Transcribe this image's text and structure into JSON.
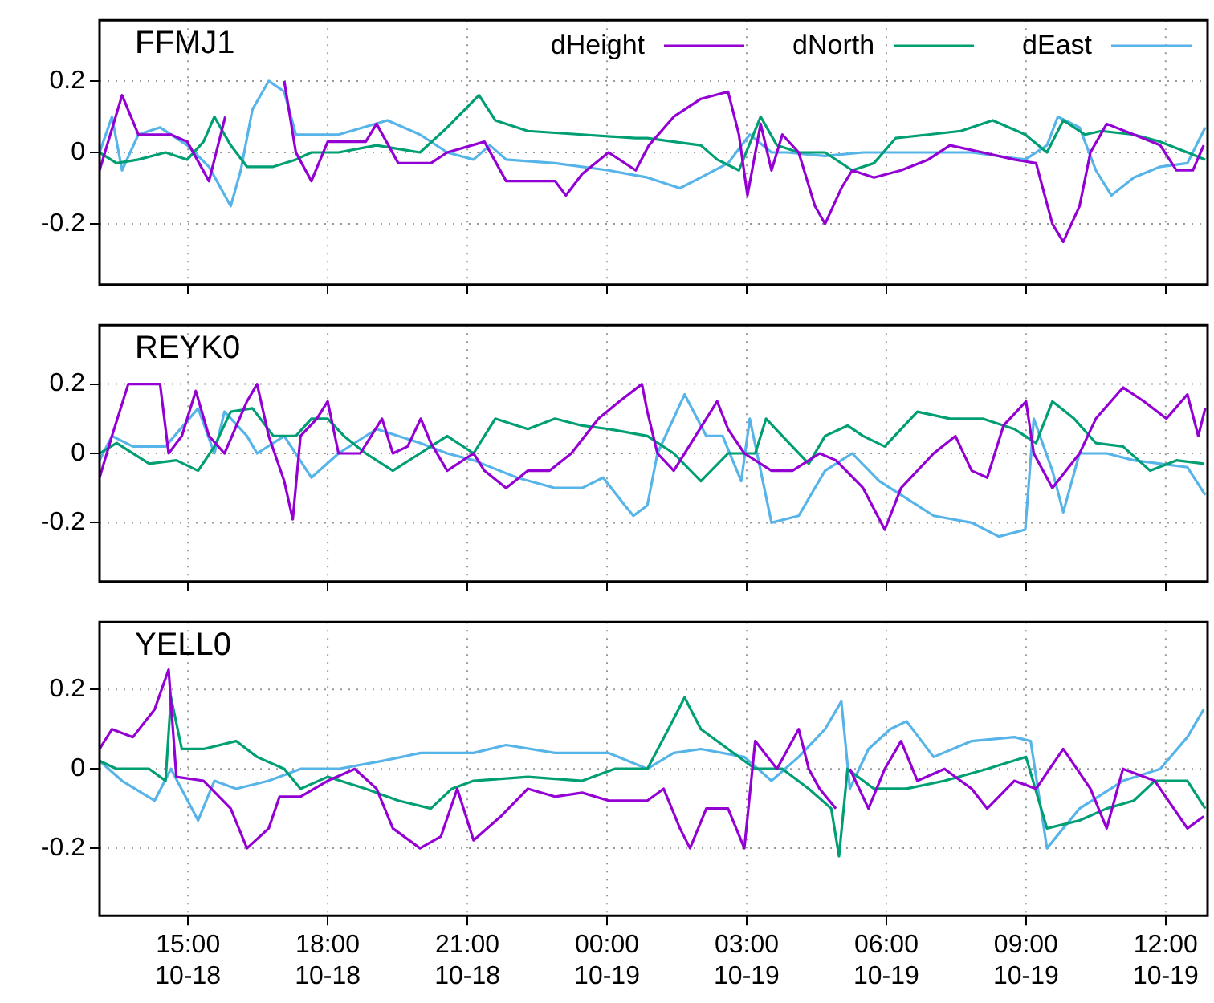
{
  "chart_data": [
    {
      "type": "line",
      "title": "FFMJ1",
      "legend": "top right",
      "grid": true,
      "tick_labels": "y",
      "marker": "none",
      "xlim": [
        "--10-18T13:06",
        "--10-19T12:54"
      ],
      "ylim": [
        -0.37,
        0.37
      ],
      "yticks": [
        -0.2,
        0,
        0.2
      ],
      "xticks": [
        {
          "value": "--10-18T15:00",
          "label": null
        },
        {
          "value": "--10-18T18:00",
          "label": null
        },
        {
          "value": "--10-18T21:00",
          "label": null
        },
        {
          "value": "--10-19T00:00",
          "label": null
        },
        {
          "value": "--10-19T03:00",
          "label": null
        },
        {
          "value": "--10-19T06:00",
          "label": null
        },
        {
          "value": "--10-19T09:00",
          "label": null
        },
        {
          "value": "--10-19T12:00",
          "label": null
        }
      ],
      "series": [
        {
          "name": "dHeight",
          "color": "#9400d3",
          "x": [
            "--10-18T13:06",
            "--10-18T13:35",
            "--10-18T13:56",
            "--10-18T14:10",
            "--10-18T14:38",
            "--10-18T14:59",
            "--10-18T15:27",
            "--10-18T15:48",
            "--10-18T16:02",
            "--10-18T16:58",
            "--10-18T17:04",
            "--10-18T17:19",
            "--10-18T17:39",
            "--10-18T18:00",
            "--10-18T18:49",
            "--10-18T19:03",
            "--10-18T19:31",
            "--10-18T20:13",
            "--10-18T20:34",
            "--10-18T21:22",
            "--10-18T21:50",
            "--10-18T22:53",
            "--10-18T23:07",
            "--10-18T23:28",
            "--10-19T00:02",
            "--10-19T00:37",
            "--10-19T00:54",
            "--10-19T01:26",
            "--10-19T02:01",
            "--10-19T02:36",
            "--10-19T02:50",
            "--10-19T03:01",
            "--10-19T03:18",
            "--10-19T03:32",
            "--10-19T03:46",
            "--10-19T04:07",
            "--10-19T04:28",
            "--10-19T04:41",
            "--10-19T05:02",
            "--10-19T05:16",
            "--10-19T05:44",
            "--10-19T06:19",
            "--10-19T06:54",
            "--10-19T07:22",
            "--10-19T08:04",
            "--10-19T08:45",
            "--10-19T09:13",
            "--10-19T09:34",
            "--10-19T09:48",
            "--10-19T10:09",
            "--10-19T10:23",
            "--10-19T10:44",
            "--10-19T11:19",
            "--10-19T11:53",
            "--10-19T12:14",
            "--10-19T12:35",
            "--10-19T12:49"
          ],
          "values": [
            -0.05,
            0.16,
            0.05,
            0.05,
            0.05,
            0.03,
            -0.08,
            0.1,
            null,
            null,
            0.2,
            0.0,
            -0.08,
            0.03,
            0.03,
            0.08,
            -0.03,
            -0.03,
            0.0,
            0.03,
            -0.08,
            -0.08,
            -0.12,
            -0.06,
            0.0,
            -0.05,
            0.02,
            0.1,
            0.15,
            0.17,
            0.05,
            -0.12,
            0.08,
            -0.05,
            0.05,
            0.0,
            -0.15,
            -0.2,
            -0.1,
            -0.05,
            -0.07,
            -0.05,
            -0.02,
            0.02,
            0.0,
            -0.02,
            -0.03,
            -0.2,
            -0.25,
            -0.15,
            0.0,
            0.08,
            0.05,
            0.02,
            -0.05,
            -0.05,
            0.02
          ]
        },
        {
          "name": "dNorth",
          "color": "#009e73",
          "x": [
            "--10-18T13:06",
            "--10-18T13:28",
            "--10-18T13:56",
            "--10-18T14:31",
            "--10-18T14:59",
            "--10-18T15:20",
            "--10-18T15:34",
            "--10-18T15:55",
            "--10-18T16:16",
            "--10-18T16:50",
            "--10-18T17:19",
            "--10-18T17:39",
            "--10-18T18:14",
            "--10-18T19:03",
            "--10-18T19:59",
            "--10-18T20:34",
            "--10-18T21:15",
            "--10-18T21:36",
            "--10-18T22:18",
            "--10-18T23:28",
            "--10-19T00:37",
            "--10-19T00:52",
            "--10-19T01:26",
            "--10-19T02:01",
            "--10-19T02:22",
            "--10-19T02:50",
            "--10-19T03:18",
            "--10-19T03:39",
            "--10-19T04:07",
            "--10-19T04:41",
            "--10-19T05:16",
            "--10-19T05:44",
            "--10-19T06:12",
            "--10-19T06:54",
            "--10-19T07:36",
            "--10-19T08:17",
            "--10-19T08:59",
            "--10-19T09:27",
            "--10-19T09:48",
            "--10-19T10:16",
            "--10-19T10:37",
            "--10-19T11:19",
            "--10-19T11:53",
            "--10-19T12:28",
            "--10-19T12:51"
          ],
          "values": [
            0.0,
            -0.03,
            -0.02,
            0.0,
            -0.02,
            0.03,
            0.1,
            0.02,
            -0.04,
            -0.04,
            -0.02,
            0.0,
            0.0,
            0.02,
            0.0,
            0.07,
            0.16,
            0.09,
            0.06,
            0.05,
            0.04,
            0.04,
            0.03,
            0.02,
            -0.02,
            -0.05,
            0.1,
            0.02,
            0.0,
            0.0,
            -0.05,
            -0.03,
            0.04,
            0.05,
            0.06,
            0.09,
            0.05,
            0.0,
            0.09,
            0.05,
            0.06,
            0.05,
            0.03,
            0.0,
            -0.02
          ]
        },
        {
          "name": "dEast",
          "color": "#56b4e9",
          "x": [
            "--10-18T13:06",
            "--10-18T13:22",
            "--10-18T13:35",
            "--10-18T13:56",
            "--10-18T14:24",
            "--10-18T14:59",
            "--10-18T15:27",
            "--10-18T15:55",
            "--10-18T16:08",
            "--10-18T16:23",
            "--10-18T16:44",
            "--10-18T17:04",
            "--10-18T17:19",
            "--10-18T17:39",
            "--10-18T18:14",
            "--10-18T19:17",
            "--10-18T19:59",
            "--10-18T20:34",
            "--10-18T21:08",
            "--10-18T21:29",
            "--10-18T21:50",
            "--10-18T22:53",
            "--10-19T00:02",
            "--10-19T00:52",
            "--10-19T01:34",
            "--10-19T02:01",
            "--10-19T02:36",
            "--10-19T03:04",
            "--10-19T03:32",
            "--10-19T03:53",
            "--10-19T04:41",
            "--10-19T05:30",
            "--10-19T05:58",
            "--10-19T06:40",
            "--10-19T07:50",
            "--10-19T08:59",
            "--10-19T09:27",
            "--10-19T09:41",
            "--10-19T10:09",
            "--10-19T10:30",
            "--10-19T10:50",
            "--10-19T11:19",
            "--10-19T11:53",
            "--10-19T12:28",
            "--10-19T12:51"
          ],
          "values": [
            0.0,
            0.1,
            -0.05,
            0.05,
            0.07,
            0.02,
            -0.04,
            -0.15,
            -0.05,
            0.12,
            0.2,
            0.17,
            0.05,
            0.05,
            0.05,
            0.09,
            0.05,
            0.0,
            -0.02,
            0.02,
            -0.02,
            -0.03,
            -0.05,
            -0.07,
            -0.1,
            -0.07,
            -0.03,
            0.05,
            0.0,
            0.0,
            -0.01,
            0.0,
            0.0,
            0.0,
            0.0,
            -0.02,
            0.02,
            0.1,
            0.07,
            -0.05,
            -0.12,
            -0.07,
            -0.04,
            -0.03,
            0.07
          ]
        }
      ]
    },
    {
      "type": "line",
      "title": "REYK0",
      "legend": false,
      "grid": true,
      "tick_labels": "y",
      "marker": "none",
      "xlim": [
        "--10-18T13:06",
        "--10-19T12:54"
      ],
      "ylim": [
        -0.37,
        0.37
      ],
      "yticks": [
        -0.2,
        0,
        0.2
      ],
      "xticks": [
        {
          "value": "--10-18T15:00",
          "label": null
        },
        {
          "value": "--10-18T18:00",
          "label": null
        },
        {
          "value": "--10-18T21:00",
          "label": null
        },
        {
          "value": "--10-19T00:00",
          "label": null
        },
        {
          "value": "--10-19T03:00",
          "label": null
        },
        {
          "value": "--10-19T06:00",
          "label": null
        },
        {
          "value": "--10-19T09:00",
          "label": null
        },
        {
          "value": "--10-19T12:00",
          "label": null
        }
      ],
      "series": [
        {
          "color": "#9400d3",
          "x": [
            "--10-18T13:06",
            "--10-18T13:22",
            "--10-18T13:43",
            "--10-18T14:24",
            "--10-18T14:35",
            "--10-18T14:52",
            "--10-18T15:10",
            "--10-18T15:27",
            "--10-18T15:47",
            "--10-18T16:16",
            "--10-18T16:29",
            "--10-18T16:44",
            "--10-18T17:04",
            "--10-18T17:15",
            "--10-18T17:25",
            "--10-18T17:46",
            "--10-18T18:00",
            "--10-18T18:14",
            "--10-18T18:42",
            "--10-18T19:10",
            "--10-18T19:24",
            "--10-18T19:43",
            "--10-18T20:00",
            "--10-18T20:13",
            "--10-18T20:34",
            "--10-18T21:08",
            "--10-18T21:22",
            "--10-18T21:50",
            "--10-18T22:18",
            "--10-18T22:46",
            "--10-18T23:14",
            "--10-18T23:49",
            "--10-19T00:16",
            "--10-19T00:45",
            "--10-19T00:52",
            "--10-19T01:05",
            "--10-19T01:26",
            "--10-19T01:54",
            "--10-19T02:22",
            "--10-19T02:36",
            "--10-19T02:57",
            "--10-19T03:32",
            "--10-19T03:59",
            "--10-19T04:34",
            "--10-19T04:55",
            "--10-19T05:30",
            "--10-19T05:58",
            "--10-19T06:19",
            "--10-19T07:01",
            "--10-19T07:29",
            "--10-19T07:50",
            "--10-19T08:10",
            "--10-19T08:31",
            "--10-19T09:00",
            "--10-19T09:10",
            "--10-19T09:34",
            "--10-19T10:09",
            "--10-19T10:30",
            "--10-19T11:05",
            "--10-19T11:32",
            "--10-19T12:01",
            "--10-19T12:28",
            "--10-19T12:42",
            "--10-19T12:51"
          ],
          "values": [
            -0.07,
            0.05,
            0.2,
            0.2,
            0.0,
            0.05,
            0.18,
            0.05,
            0.0,
            0.15,
            0.2,
            0.05,
            -0.08,
            -0.19,
            0.05,
            0.1,
            0.15,
            0.0,
            0.0,
            0.1,
            0.0,
            0.02,
            0.1,
            0.03,
            -0.05,
            0.0,
            -0.05,
            -0.1,
            -0.05,
            -0.05,
            0.0,
            0.1,
            0.15,
            0.2,
            0.12,
            0.0,
            -0.05,
            0.05,
            0.15,
            0.07,
            0.0,
            -0.05,
            -0.05,
            0.0,
            -0.02,
            -0.1,
            -0.22,
            -0.1,
            0.0,
            0.05,
            -0.05,
            -0.07,
            0.08,
            0.15,
            0.0,
            -0.1,
            0.0,
            0.1,
            0.19,
            0.15,
            0.1,
            0.17,
            0.05,
            0.13
          ]
        },
        {
          "color": "#009e73",
          "x": [
            "--10-18T13:06",
            "--10-18T13:28",
            "--10-18T14:10",
            "--10-18T14:45",
            "--10-18T15:13",
            "--10-18T15:34",
            "--10-18T15:55",
            "--10-18T16:23",
            "--10-18T16:50",
            "--10-18T17:19",
            "--10-18T17:39",
            "--10-18T18:00",
            "--10-18T18:21",
            "--10-18T18:49",
            "--10-18T19:24",
            "--10-18T19:59",
            "--10-18T20:34",
            "--10-18T21:08",
            "--10-18T21:36",
            "--10-18T22:18",
            "--10-18T22:53",
            "--10-18T23:28",
            "--10-19T00:02",
            "--10-19T00:52",
            "--10-19T01:26",
            "--10-19T02:01",
            "--10-19T02:36",
            "--10-19T03:11",
            "--10-19T03:25",
            "--10-19T03:46",
            "--10-19T04:20",
            "--10-19T04:41",
            "--10-19T05:10",
            "--10-19T05:30",
            "--10-19T05:58",
            "--10-19T06:40",
            "--10-19T07:22",
            "--10-19T08:04",
            "--10-19T08:45",
            "--10-19T09:13",
            "--10-19T09:34",
            "--10-19T10:02",
            "--10-19T10:30",
            "--10-19T11:05",
            "--10-19T11:40",
            "--10-19T12:14",
            "--10-19T12:49"
          ],
          "values": [
            0.0,
            0.03,
            -0.03,
            -0.02,
            -0.05,
            0.02,
            0.12,
            0.13,
            0.05,
            0.05,
            0.1,
            0.1,
            0.05,
            0.0,
            -0.05,
            0.0,
            0.05,
            0.0,
            0.1,
            0.07,
            0.1,
            0.08,
            0.07,
            0.05,
            0.0,
            -0.08,
            0.0,
            0.0,
            0.1,
            0.05,
            -0.03,
            0.05,
            0.08,
            0.05,
            0.02,
            0.12,
            0.1,
            0.1,
            0.07,
            0.03,
            0.15,
            0.1,
            0.03,
            0.02,
            -0.05,
            -0.02,
            -0.03
          ]
        },
        {
          "color": "#56b4e9",
          "x": [
            "--10-18T13:06",
            "--10-18T13:22",
            "--10-18T13:49",
            "--10-18T14:31",
            "--10-18T15:13",
            "--10-18T15:34",
            "--10-18T15:47",
            "--10-18T16:16",
            "--10-18T16:29",
            "--10-18T17:04",
            "--10-18T17:39",
            "--10-18T18:14",
            "--10-18T19:03",
            "--10-18T19:59",
            "--10-18T20:34",
            "--10-18T21:08",
            "--10-18T22:04",
            "--10-18T22:53",
            "--10-18T23:28",
            "--10-18T23:55",
            "--10-19T00:23",
            "--10-19T00:34",
            "--10-19T00:52",
            "--10-19T01:05",
            "--10-19T01:40",
            "--10-19T02:08",
            "--10-19T02:29",
            "--10-19T02:53",
            "--10-19T03:04",
            "--10-19T03:32",
            "--10-19T04:07",
            "--10-19T04:41",
            "--10-19T05:16",
            "--10-19T05:51",
            "--10-19T06:26",
            "--10-19T07:01",
            "--10-19T07:50",
            "--10-19T08:25",
            "--10-19T08:59",
            "--10-19T09:10",
            "--10-19T09:34",
            "--10-19T09:48",
            "--10-19T10:09",
            "--10-19T10:44",
            "--10-19T11:19",
            "--10-19T11:53",
            "--10-19T12:28",
            "--10-19T12:51"
          ],
          "values": [
            -0.02,
            0.05,
            0.02,
            0.02,
            0.13,
            0.0,
            0.12,
            0.05,
            0.0,
            0.05,
            -0.07,
            0.0,
            0.07,
            0.03,
            0.0,
            -0.02,
            -0.07,
            -0.1,
            -0.1,
            -0.07,
            -0.15,
            -0.18,
            -0.15,
            0.0,
            0.17,
            0.05,
            0.05,
            -0.08,
            0.1,
            -0.2,
            -0.18,
            -0.05,
            0.0,
            -0.08,
            -0.13,
            -0.18,
            -0.2,
            -0.24,
            -0.22,
            0.1,
            -0.05,
            -0.17,
            0.0,
            0.0,
            -0.02,
            -0.03,
            -0.04,
            -0.12
          ]
        }
      ]
    },
    {
      "type": "line",
      "title": "YELL0",
      "legend": false,
      "grid": true,
      "marker": "none",
      "xlim": [
        "--10-18T13:06",
        "--10-19T12:54"
      ],
      "ylim": [
        -0.37,
        0.37
      ],
      "yticks": [
        -0.2,
        0,
        0.2
      ],
      "xticks": [
        {
          "value": "--10-18T15:00",
          "label": "15:00\n10-18"
        },
        {
          "value": "--10-18T18:00",
          "label": "18:00\n10-18"
        },
        {
          "value": "--10-18T21:00",
          "label": "21:00\n10-18"
        },
        {
          "value": "--10-19T00:00",
          "label": "00:00\n10-19"
        },
        {
          "value": "--10-19T03:00",
          "label": "03:00\n10-19"
        },
        {
          "value": "--10-19T06:00",
          "label": "06:00\n10-19"
        },
        {
          "value": "--10-19T09:00",
          "label": "09:00\n10-19"
        },
        {
          "value": "--10-19T12:00",
          "label": "12:00\n10-19"
        }
      ],
      "series": [
        {
          "color": "#9400d3",
          "x": [
            "--10-18T13:06",
            "--10-18T13:22",
            "--10-18T13:49",
            "--10-18T14:17",
            "--10-18T14:35",
            "--10-18T14:45",
            "--10-18T15:20",
            "--10-18T15:55",
            "--10-18T16:16",
            "--10-18T16:44",
            "--10-18T16:58",
            "--10-18T17:25",
            "--10-18T18:00",
            "--10-18T18:35",
            "--10-18T19:03",
            "--10-18T19:24",
            "--10-18T19:59",
            "--10-18T20:26",
            "--10-18T20:47",
            "--10-18T21:08",
            "--10-18T21:43",
            "--10-18T22:18",
            "--10-18T22:53",
            "--10-18T23:28",
            "--10-19T00:02",
            "--10-19T00:37",
            "--10-19T00:52",
            "--10-19T01:13",
            "--10-19T01:34",
            "--10-19T01:47",
            "--10-19T02:08",
            "--10-19T02:36",
            "--10-19T02:57",
            "--10-19T03:11",
            "--10-19T03:39",
            "--10-19T04:07",
            "--10-19T04:20",
            "--10-19T04:34",
            "--10-19T04:55",
            "--10-19T05:01",
            "--10-19T05:13",
            "--10-19T05:37",
            "--10-19T05:58",
            "--10-19T06:19",
            "--10-19T06:40",
            "--10-19T07:15",
            "--10-19T07:50",
            "--10-19T08:10",
            "--10-19T08:45",
            "--10-19T09:13",
            "--10-19T09:48",
            "--10-19T10:23",
            "--10-19T10:44",
            "--10-19T11:05",
            "--10-19T11:46",
            "--10-19T12:28",
            "--10-19T12:49"
          ],
          "values": [
            0.05,
            0.1,
            0.08,
            0.15,
            0.25,
            -0.02,
            -0.03,
            -0.1,
            -0.2,
            -0.15,
            -0.07,
            -0.07,
            -0.03,
            0.0,
            -0.05,
            -0.15,
            -0.2,
            -0.17,
            -0.05,
            -0.18,
            -0.12,
            -0.05,
            -0.07,
            -0.06,
            -0.08,
            -0.08,
            -0.08,
            -0.05,
            -0.15,
            -0.2,
            -0.1,
            -0.1,
            -0.2,
            0.07,
            0.0,
            0.1,
            0.0,
            -0.05,
            -0.1,
            null,
            0.0,
            -0.1,
            0.0,
            0.07,
            -0.03,
            0.0,
            -0.05,
            -0.1,
            -0.03,
            -0.05,
            0.05,
            -0.05,
            -0.15,
            0.0,
            -0.03,
            -0.15,
            -0.12
          ]
        },
        {
          "color": "#009e73",
          "x": [
            "--10-18T13:06",
            "--10-18T13:28",
            "--10-18T14:10",
            "--10-18T14:31",
            "--10-18T14:38",
            "--10-18T14:52",
            "--10-18T15:20",
            "--10-18T16:02",
            "--10-18T16:29",
            "--10-18T17:04",
            "--10-18T17:25",
            "--10-18T18:00",
            "--10-18T18:49",
            "--10-18T19:31",
            "--10-18T20:13",
            "--10-18T20:40",
            "--10-18T21:08",
            "--10-18T22:18",
            "--10-18T23:28",
            "--10-19T00:10",
            "--10-19T00:37",
            "--10-19T00:52",
            "--10-19T01:19",
            "--10-19T01:40",
            "--10-19T02:01",
            "--10-19T02:36",
            "--10-19T03:11",
            "--10-19T03:46",
            "--10-19T04:20",
            "--10-19T04:49",
            "--10-19T04:59",
            "--10-19T05:10",
            "--10-19T05:44",
            "--10-19T06:26",
            "--10-19T07:15",
            "--10-19T08:10",
            "--10-19T09:00",
            "--10-19T09:27",
            "--10-19T10:09",
            "--10-19T10:44",
            "--10-19T11:19",
            "--10-19T11:46",
            "--10-19T12:28",
            "--10-19T12:51"
          ],
          "values": [
            0.02,
            0.0,
            0.0,
            -0.03,
            0.18,
            0.05,
            0.05,
            0.07,
            0.03,
            0.0,
            -0.05,
            -0.02,
            -0.05,
            -0.08,
            -0.1,
            -0.05,
            -0.03,
            -0.02,
            -0.03,
            0.0,
            0.0,
            0.0,
            0.1,
            0.18,
            0.1,
            0.05,
            0.0,
            0.0,
            -0.05,
            -0.1,
            -0.22,
            0.0,
            -0.05,
            -0.05,
            -0.03,
            0.0,
            0.03,
            -0.15,
            -0.13,
            -0.1,
            -0.08,
            -0.03,
            -0.03,
            -0.1
          ]
        },
        {
          "color": "#56b4e9",
          "x": [
            "--10-18T13:06",
            "--10-18T13:35",
            "--10-18T14:17",
            "--10-18T14:38",
            "--10-18T15:13",
            "--10-18T15:34",
            "--10-18T16:02",
            "--10-18T16:44",
            "--10-18T17:25",
            "--10-18T18:14",
            "--10-18T19:10",
            "--10-18T20:00",
            "--10-18T21:08",
            "--10-18T21:50",
            "--10-18T22:53",
            "--10-19T00:02",
            "--10-19T00:52",
            "--10-19T01:26",
            "--10-19T02:01",
            "--10-19T02:57",
            "--10-19T03:32",
            "--10-19T04:07",
            "--10-19T04:41",
            "--10-19T05:02",
            "--10-19T05:13",
            "--10-19T05:37",
            "--10-19T06:05",
            "--10-19T06:26",
            "--10-19T07:01",
            "--10-19T07:50",
            "--10-19T08:45",
            "--10-19T09:06",
            "--10-19T09:27",
            "--10-19T10:09",
            "--10-19T11:05",
            "--10-19T11:53",
            "--10-19T12:28",
            "--10-19T12:49"
          ],
          "values": [
            0.02,
            -0.03,
            -0.08,
            0.0,
            -0.13,
            -0.03,
            -0.05,
            -0.03,
            0.0,
            0.0,
            0.02,
            0.04,
            0.04,
            0.06,
            0.04,
            0.04,
            0.0,
            0.04,
            0.05,
            0.03,
            -0.03,
            0.03,
            0.1,
            0.17,
            -0.05,
            0.05,
            0.1,
            0.12,
            0.03,
            0.07,
            0.08,
            0.07,
            -0.2,
            -0.1,
            -0.03,
            0.0,
            0.08,
            0.15
          ]
        }
      ]
    }
  ]
}
